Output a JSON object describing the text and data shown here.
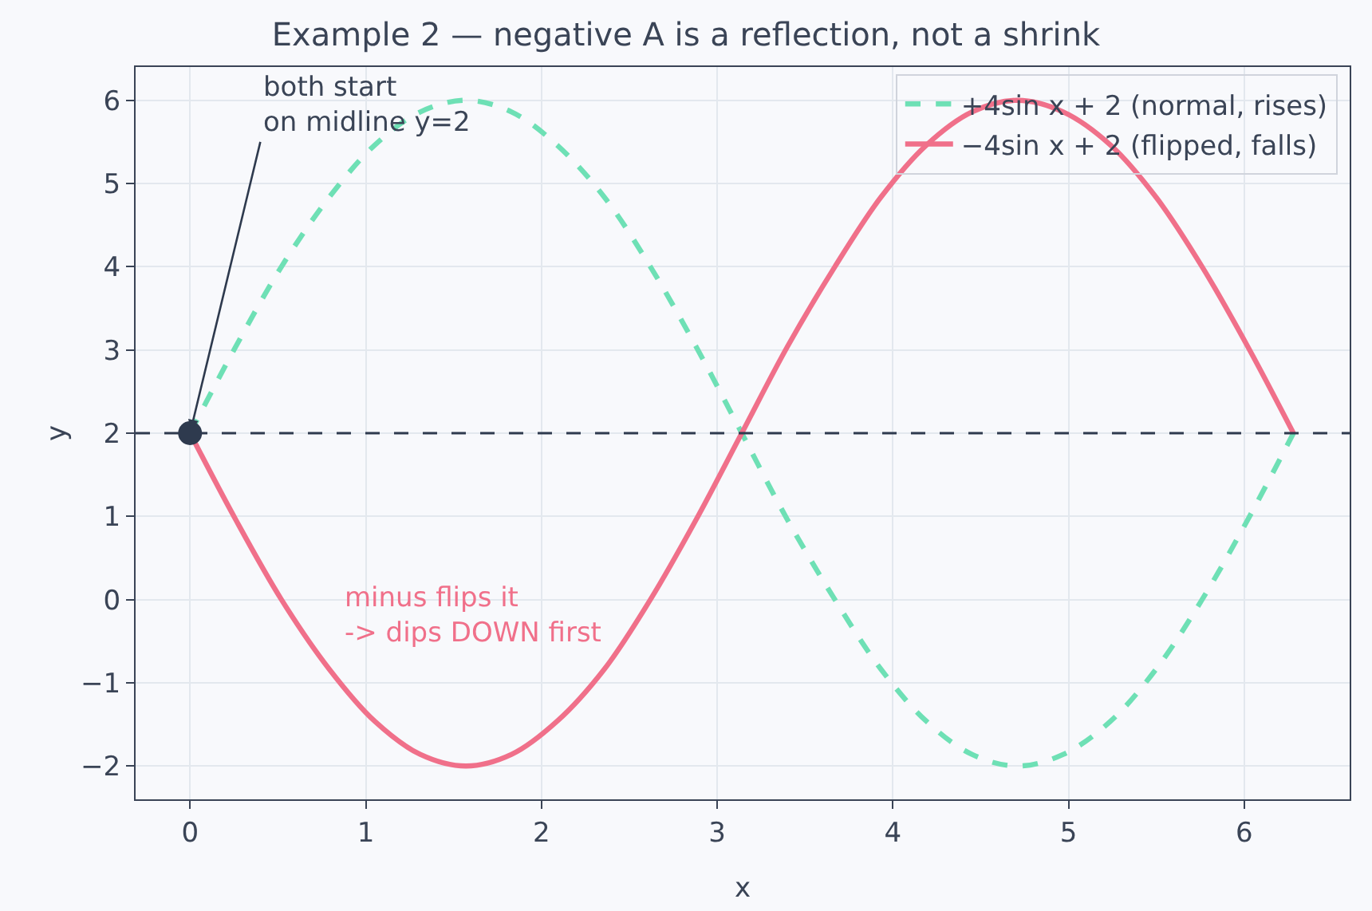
{
  "chart_data": {
    "type": "line",
    "title": "Example 2 — negative A is a reflection, not a shrink",
    "xlabel": "x",
    "ylabel": "y",
    "x": [
      0,
      0.26,
      0.52,
      0.79,
      1.05,
      1.31,
      1.57,
      1.83,
      2.09,
      2.36,
      2.62,
      2.88,
      3.14,
      3.4,
      3.67,
      3.93,
      4.19,
      4.45,
      4.71,
      4.97,
      5.24,
      5.5,
      5.76,
      6.02,
      6.28
    ],
    "series": [
      {
        "name": "+4sin x + 2 (normal, rises)",
        "color": "#6ee0b5",
        "line_style": "dashed",
        "values": [
          2,
          3.04,
          4,
          4.83,
          5.46,
          5.86,
          6,
          5.86,
          5.46,
          4.83,
          4,
          3.04,
          2,
          0.96,
          0,
          -0.83,
          -1.46,
          -1.86,
          -2,
          -1.86,
          -1.46,
          -0.83,
          0,
          0.96,
          2
        ]
      },
      {
        "name": "−4sin x + 2 (flipped, falls)",
        "color": "#f0708a",
        "line_style": "solid",
        "values": [
          2,
          0.96,
          0,
          -0.83,
          -1.46,
          -1.86,
          -2,
          -1.86,
          -1.46,
          -0.83,
          0,
          0.96,
          2,
          3.04,
          4,
          4.83,
          5.46,
          5.86,
          6,
          5.86,
          5.46,
          4.83,
          4,
          3.04,
          2
        ]
      },
      {
        "type": "scatter",
        "color": "#2e3a4e",
        "marker": "circle",
        "x": [
          0
        ],
        "values": [
          2
        ]
      }
    ],
    "ref_lines": [
      {
        "axis": "y",
        "value": 2,
        "color": "#2e3a4e",
        "line_style": "dashed"
      }
    ],
    "annotations": [
      {
        "text": "both start\non midline y=2",
        "x": 0,
        "y": 2
      },
      "minus flips it\n-> dips DOWN first"
    ],
    "xlim": [
      -0.31,
      6.6
    ],
    "xticks": [
      0,
      1,
      2,
      3,
      4,
      5,
      6
    ],
    "ylim": [
      -2.4,
      6.4
    ],
    "yticks": [
      {
        "value": -2,
        "label": "−2"
      },
      {
        "value": -1,
        "label": "−1"
      },
      0,
      1,
      2,
      3,
      4,
      5,
      6
    ],
    "grid": true,
    "legend": "top right"
  }
}
